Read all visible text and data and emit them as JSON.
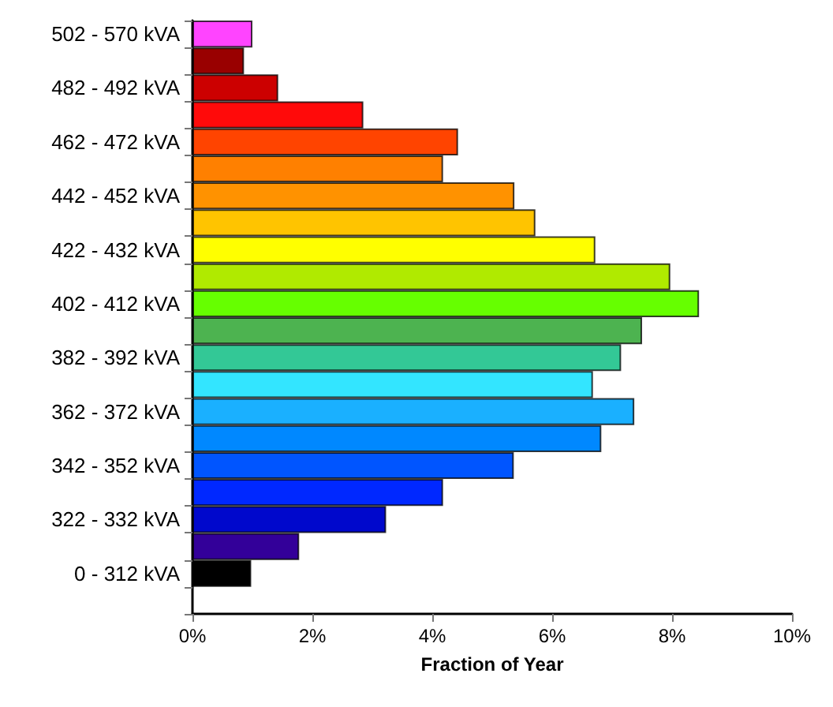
{
  "chart_data": {
    "type": "bar",
    "orientation": "horizontal",
    "xlabel": "Fraction of Year",
    "categories": [
      "502 - 570 kVA",
      null,
      "482 - 492 kVA",
      null,
      "462 - 472 kVA",
      null,
      "442 - 452 kVA",
      null,
      "422 - 432 kVA",
      null,
      "402 - 412 kVA",
      null,
      "382 - 392 kVA",
      null,
      "362 - 372 kVA",
      null,
      "342 - 352 kVA",
      null,
      "322 - 332 kVA",
      null,
      "0 - 312 kVA",
      null
    ],
    "values": [
      1.0,
      0.86,
      1.43,
      2.85,
      4.43,
      4.18,
      5.37,
      5.72,
      6.72,
      7.97,
      8.45,
      7.5,
      7.15,
      6.68,
      7.37,
      6.82,
      5.36,
      4.18,
      3.23,
      1.78,
      0.98,
      null
    ],
    "colors": [
      "#ff44ff",
      "#990000",
      "#cc0000",
      "#ff0a0a",
      "#ff4400",
      "#ff8000",
      "#ff9200",
      "#ffc400",
      "#ffff00",
      "#b0ea00",
      "#66ff00",
      "#4db350",
      "#33c896",
      "#33e5ff",
      "#1ab0ff",
      "#0088ff",
      "#0055ff",
      "#0028ff",
      "#0008cc",
      "#330099",
      "#000000",
      "#000000"
    ],
    "xlim": [
      0,
      10
    ],
    "xticks": [
      {
        "value": 0,
        "label": "0%"
      },
      {
        "value": 2,
        "label": "2%"
      },
      {
        "value": 4,
        "label": "4%"
      },
      {
        "value": 6,
        "label": "6%"
      },
      {
        "value": 8,
        "label": "8%"
      },
      {
        "value": 10,
        "label": "10%"
      }
    ],
    "grid": false
  }
}
